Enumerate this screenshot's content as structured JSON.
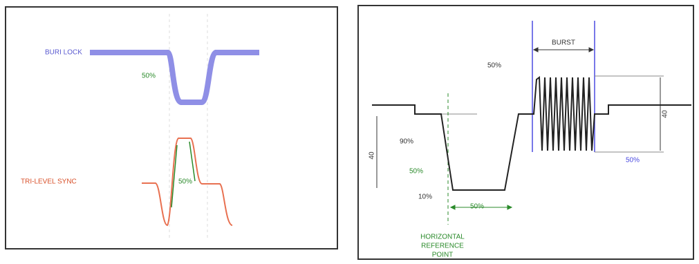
{
  "left_panel": {
    "top_label": "BURI LOCK",
    "top_percent": "50%",
    "bottom_label": "TRI-LEVEL SYNC",
    "bottom_percent": "50%"
  },
  "right_panel": {
    "burst_label": "BURST",
    "burst_percent": "50%",
    "upper_percent": "90%",
    "middle_percent": "50%",
    "lower_percent": "10%",
    "width_percent": "50%",
    "right_percent": "50%",
    "left_amplitude": "40",
    "right_amplitude": "40",
    "reference_caption": [
      "HORIZONTAL",
      "REFERENCE",
      "POINT"
    ]
  }
}
